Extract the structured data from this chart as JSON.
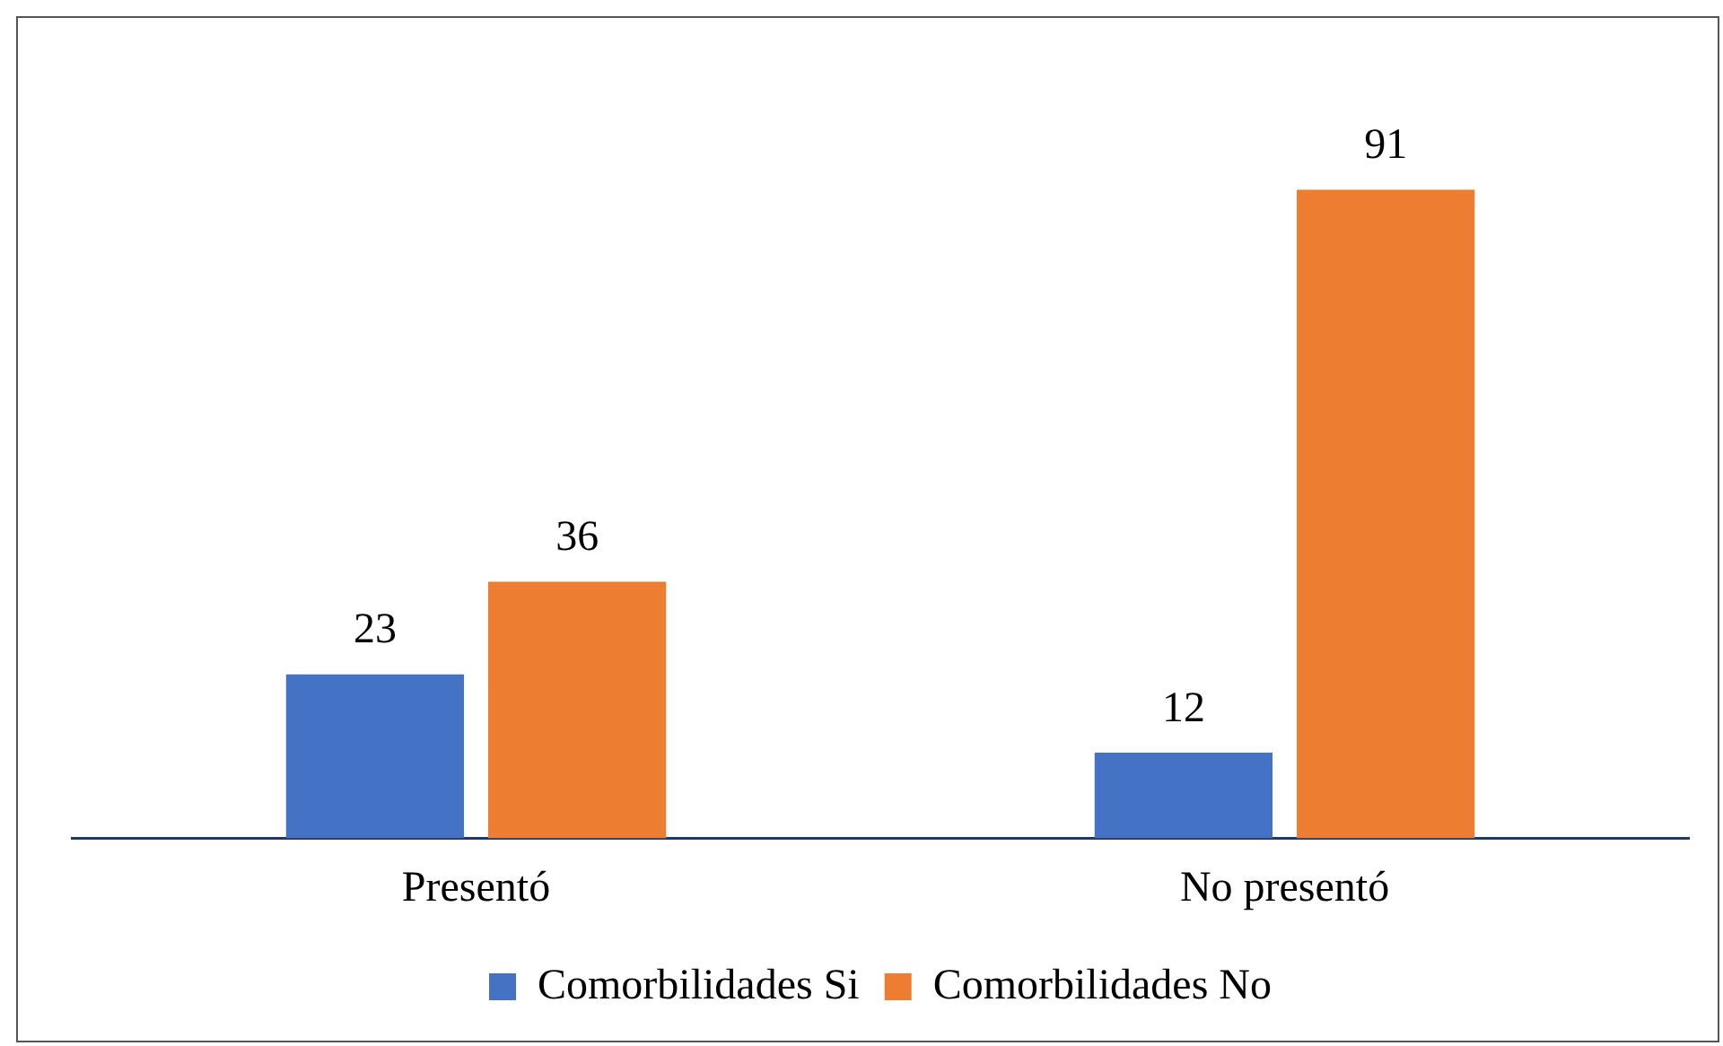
{
  "chart_data": {
    "type": "bar",
    "categories": [
      "Presentó",
      "No presentó"
    ],
    "series": [
      {
        "name": "Comorbilidades Si",
        "color": "#4472c4",
        "values": [
          23,
          12
        ]
      },
      {
        "name": "Comorbilidades No",
        "color": "#ed7d31",
        "values": [
          36,
          91
        ]
      }
    ],
    "data_labels": true,
    "grid": false,
    "legend": "bottom"
  }
}
